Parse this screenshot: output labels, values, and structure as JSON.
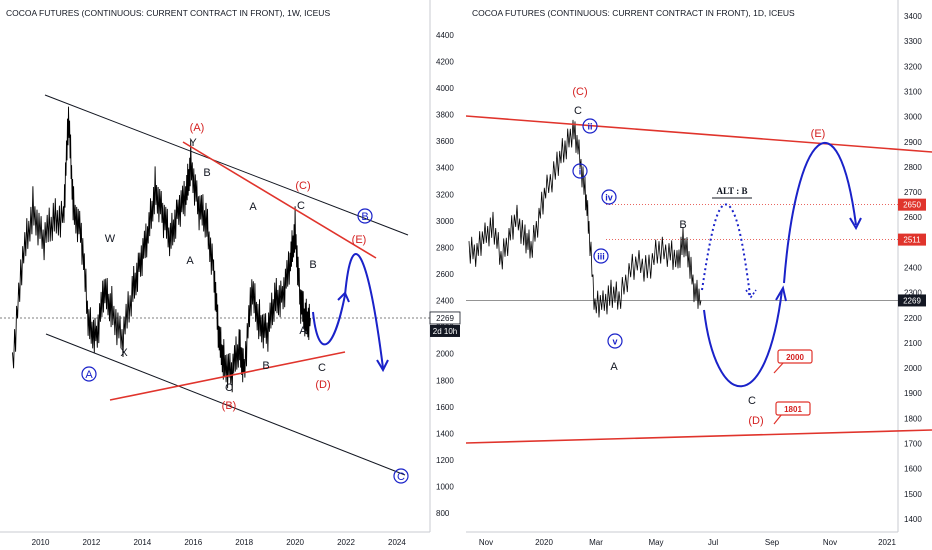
{
  "left_chart": {
    "title": "COCOA FUTURES (CONTINUOUS: CURRENT CONTRACT IN FRONT), 1W, ICEUS",
    "price_badge": "2269",
    "countdown_badge": "2d 10h",
    "colors": {
      "price": "#000000",
      "red_line": "#e0342c",
      "black_line": "#131722",
      "blue": "#1a22c9",
      "red_label": "#d42121"
    }
  },
  "right_chart": {
    "title": "COCOA FUTURES (CONTINUOUS: CURRENT CONTRACT IN FRONT), 1D, ICEUS",
    "price_badge": "2269",
    "level_2650": "2650",
    "level_2511": "2511",
    "alt_label": "ALT : B",
    "callout_2000": "2000",
    "callout_1801": "1801"
  },
  "chart_data": [
    {
      "type": "line",
      "title": "COCOA FUTURES (CONTINUOUS: CURRENT CONTRACT IN FRONT), 1W, ICEUS",
      "x_ticks": [
        "2010",
        "2012",
        "2014",
        "2016",
        "2018",
        "2020",
        "2022",
        "2024"
      ],
      "y_ticks": [
        800,
        1000,
        1200,
        1400,
        1600,
        1800,
        2000,
        2200,
        2400,
        2600,
        2800,
        3000,
        3200,
        3400,
        3600,
        3800,
        4000,
        4200,
        4400
      ],
      "ylim": [
        650,
        4550
      ],
      "xlim": [
        2008.8,
        2025.3
      ],
      "series": [
        {
          "values_x": [
            2008.9,
            2009.3,
            2009.7,
            2010.1,
            2010.5,
            2010.9,
            2011.1,
            2011.3,
            2011.6,
            2011.9,
            2012.2,
            2012.5,
            2012.8,
            2013.2,
            2013.6,
            2013.9,
            2014.2,
            2014.5,
            2014.8,
            2015.1,
            2015.4,
            2015.7,
            2015.9,
            2016.2,
            2016.5,
            2016.8,
            2017.0,
            2017.2,
            2017.5,
            2017.8,
            2018.0,
            2018.3,
            2018.6,
            2018.9,
            2019.2,
            2019.5,
            2019.8,
            2020.0,
            2020.2,
            2020.4,
            2020.6
          ],
          "values": [
            1950,
            2700,
            3100,
            2850,
            3000,
            3050,
            3750,
            3100,
            2900,
            2200,
            2150,
            2450,
            2350,
            2100,
            2450,
            2700,
            2850,
            3250,
            3050,
            2850,
            3100,
            3150,
            3450,
            3100,
            3000,
            2650,
            2100,
            1950,
            1850,
            2050,
            1900,
            2450,
            2250,
            2150,
            2400,
            2450,
            2650,
            2950,
            2400,
            2250,
            2269
          ]
        }
      ],
      "wave_labels": [
        "(A)",
        "Y",
        "B",
        "W",
        "A",
        "X",
        "B",
        "C",
        "(B)",
        "A",
        "C",
        "(C)",
        "B",
        "A",
        "C",
        "(D)",
        "(E)"
      ],
      "circled_labels": [
        "A",
        "B",
        "C"
      ]
    },
    {
      "type": "line",
      "title": "COCOA FUTURES (CONTINUOUS: CURRENT CONTRACT IN FRONT), 1D, ICEUS",
      "x_ticks": [
        "Nov",
        "2020",
        "Mar",
        "May",
        "Jul",
        "Sep",
        "Nov",
        "2021"
      ],
      "y_ticks": [
        1400,
        1500,
        1600,
        1700,
        1800,
        1900,
        2000,
        2100,
        2200,
        2300,
        2400,
        2500,
        2600,
        2700,
        2800,
        2900,
        3000,
        3100,
        3200,
        3300,
        3400
      ],
      "ylim": [
        1360,
        3460
      ],
      "series": [
        {
          "values_x": [
            0,
            8,
            16,
            24,
            32,
            40,
            48,
            56,
            62,
            70,
            78,
            88,
            96,
            104,
            110,
            116,
            120,
            126,
            134,
            142,
            150,
            160,
            170,
            180,
            190,
            200,
            208,
            214,
            220,
            226,
            232
          ],
          "values": [
            2480,
            2460,
            2530,
            2560,
            2440,
            2520,
            2600,
            2510,
            2480,
            2600,
            2720,
            2800,
            2880,
            2950,
            2860,
            2700,
            2560,
            2240,
            2260,
            2290,
            2280,
            2380,
            2420,
            2390,
            2480,
            2460,
            2420,
            2500,
            2440,
            2300,
            2269
          ]
        }
      ],
      "wave_labels": [
        "(C)",
        "C",
        "A",
        "B",
        "C",
        "(D)",
        "(E)"
      ],
      "circled_labels": [
        "ii",
        "i",
        "iv",
        "iii",
        "v"
      ],
      "levels": [
        2650,
        2511,
        2269
      ]
    }
  ]
}
